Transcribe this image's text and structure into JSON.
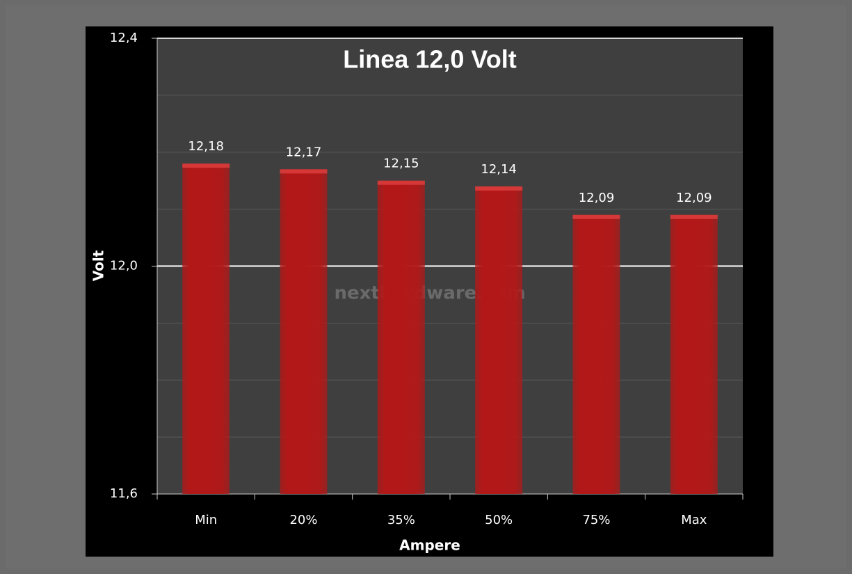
{
  "chart_data": {
    "type": "bar",
    "title": "Linea 12,0 Volt",
    "x_label": "Ampere",
    "y_label": "Volt",
    "watermark": "nexthardware.com",
    "categories": [
      "Min",
      "20%",
      "35%",
      "50%",
      "75%",
      "Max"
    ],
    "values": [
      12.18,
      12.17,
      12.15,
      12.14,
      12.09,
      12.09
    ],
    "value_labels": [
      "12,18",
      "12,17",
      "12,15",
      "12,14",
      "12,09",
      "12,09"
    ],
    "color": "#b31818",
    "ylim": [
      11.6,
      12.4
    ],
    "yticks": [
      {
        "value": 11.6,
        "label": "11,6"
      },
      {
        "value": 12.0,
        "label": "12,0"
      },
      {
        "value": 12.4,
        "label": "12,4"
      }
    ],
    "minor_yticks": [
      11.7,
      11.8,
      11.9,
      12.1,
      12.2,
      12.3
    ],
    "grid": true
  }
}
